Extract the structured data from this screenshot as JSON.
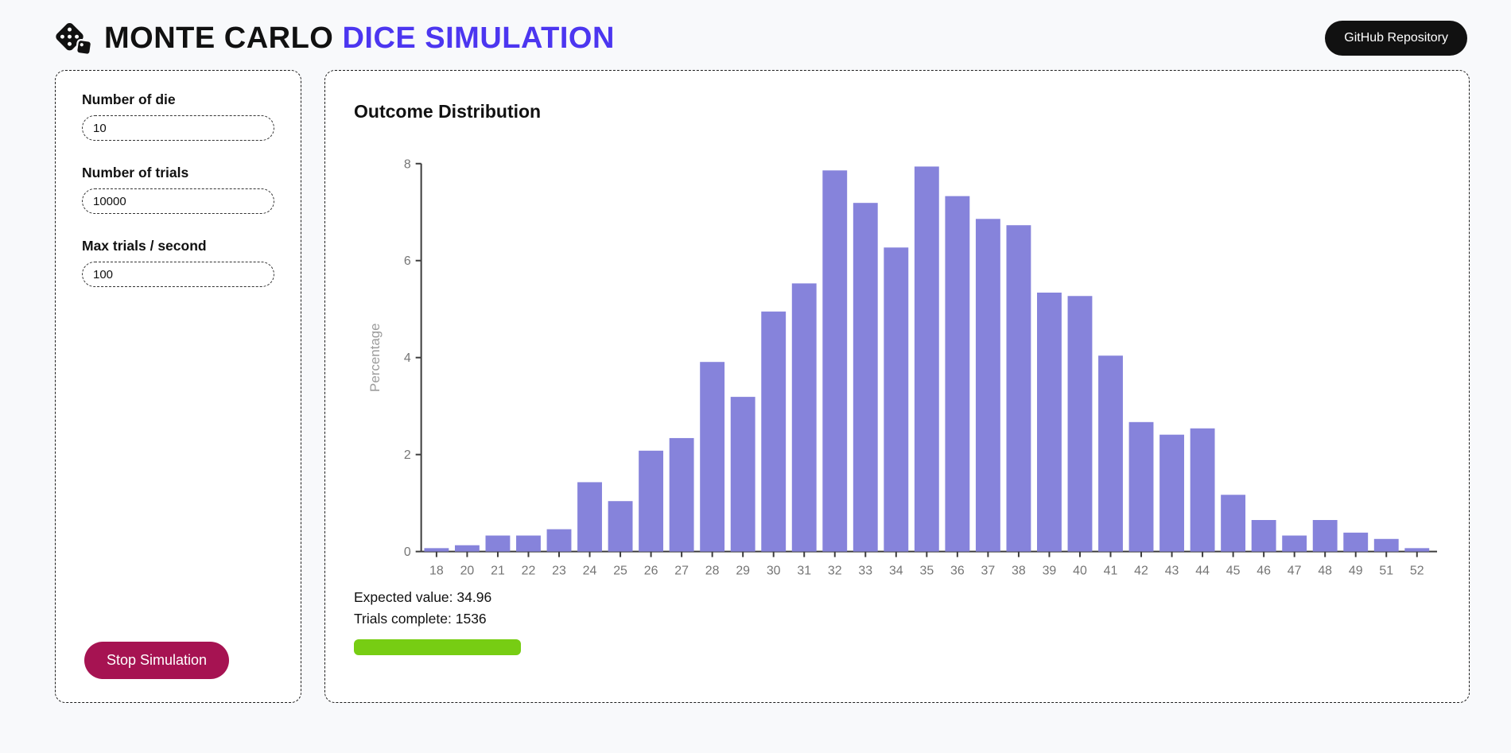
{
  "header": {
    "title_black": "MONTE CARLO",
    "title_accent": "DICE SIMULATION",
    "github_button": "GitHub Repository",
    "logo_icon": "dice-icon"
  },
  "controls": {
    "fields": [
      {
        "label": "Number of die",
        "value": "10"
      },
      {
        "label": "Number of trials",
        "value": "10000"
      },
      {
        "label": "Max trials / second",
        "value": "100"
      }
    ],
    "stop_button": "Stop Simulation"
  },
  "chart_data": {
    "type": "bar",
    "title": "Outcome Distribution",
    "xlabel": "",
    "ylabel": "Percentage",
    "ylim": [
      0,
      8
    ],
    "yticks": [
      0,
      2,
      4,
      6,
      8
    ],
    "grid": false,
    "legend": false,
    "bar_color": "#8683db",
    "categories": [
      "18",
      "20",
      "21",
      "22",
      "23",
      "24",
      "25",
      "26",
      "27",
      "28",
      "29",
      "30",
      "31",
      "32",
      "33",
      "34",
      "35",
      "36",
      "37",
      "38",
      "39",
      "40",
      "41",
      "42",
      "43",
      "44",
      "45",
      "46",
      "47",
      "48",
      "49",
      "51",
      "52"
    ],
    "values": [
      0.07,
      0.13,
      0.33,
      0.33,
      0.46,
      1.43,
      1.04,
      2.08,
      2.34,
      3.91,
      3.19,
      4.95,
      5.53,
      7.86,
      7.19,
      6.27,
      7.94,
      7.33,
      6.86,
      6.73,
      5.34,
      5.27,
      4.04,
      2.67,
      2.41,
      2.54,
      1.17,
      0.65,
      0.33,
      0.65,
      0.39,
      0.26,
      0.07
    ]
  },
  "stats": {
    "expected_label": "Expected value:",
    "expected_value": "34.96",
    "trials_label": "Trials complete:",
    "trials_value": "1536"
  },
  "progress": {
    "percent": 15.36,
    "color": "#77cd13"
  },
  "colors": {
    "accent": "#4c36f0",
    "stop_button": "#a61352",
    "bar": "#8683db",
    "progress": "#77cd13",
    "github_button": "#111111"
  }
}
